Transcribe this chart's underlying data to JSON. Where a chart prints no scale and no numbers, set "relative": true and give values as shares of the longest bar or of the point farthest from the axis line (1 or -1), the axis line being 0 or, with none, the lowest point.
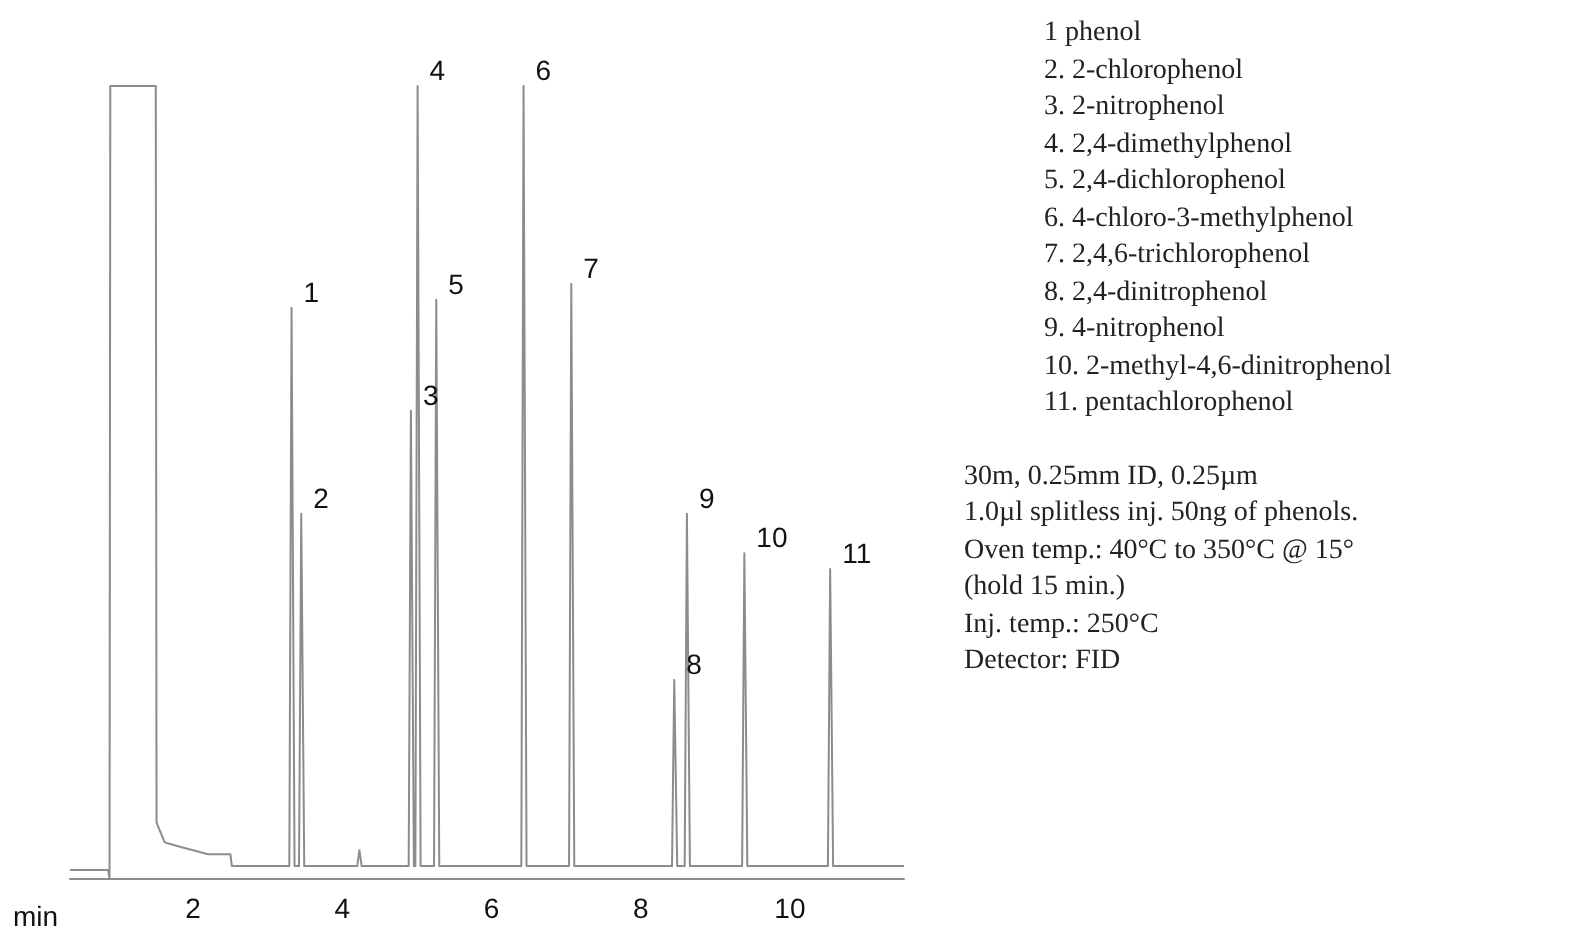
{
  "chart_data": {
    "type": "line",
    "relative": true,
    "xlabel": "min",
    "x": [
      0.35,
      0.86,
      0.88,
      0.89,
      1.5,
      1.51,
      1.62,
      1.8,
      2.2,
      2.5,
      2.52,
      3.29,
      3.32,
      3.36,
      3.42,
      3.45,
      3.49,
      4.2,
      4.23,
      4.26,
      4.89,
      4.92,
      4.96,
      4.98,
      5.01,
      5.05,
      5.23,
      5.26,
      5.3,
      6.4,
      6.43,
      6.47,
      7.04,
      7.07,
      7.11,
      8.42,
      8.45,
      8.49,
      8.59,
      8.62,
      8.66,
      9.36,
      9.39,
      9.43,
      10.51,
      10.54,
      10.58,
      11.53
    ],
    "values": [
      0.01,
      0.01,
      0,
      1,
      1,
      0.07,
      0.045,
      0.04,
      0.03,
      0.03,
      0.015,
      0.015,
      0.72,
      0.015,
      0.015,
      0.46,
      0.015,
      0.015,
      0.035,
      0.015,
      0.015,
      0.59,
      0.015,
      0.015,
      1,
      0.015,
      0.015,
      0.73,
      0.015,
      0.015,
      1,
      0.015,
      0.015,
      0.75,
      0.015,
      0.015,
      0.25,
      0.015,
      0.015,
      0.46,
      0.015,
      0.015,
      0.41,
      0.015,
      0.015,
      0.39,
      0.015,
      0.015
    ],
    "color": "#8c8c8c",
    "marker": "none",
    "line_style": "solid",
    "xlim": [
      0.35,
      11.53
    ],
    "xticks": [
      2,
      4,
      6,
      8,
      10
    ],
    "annotations": [
      {
        "text": "1",
        "x": 3.32,
        "y": 0.72
      },
      {
        "text": "2",
        "x": 3.45,
        "y": 0.46
      },
      {
        "text": "3",
        "x": 4.92,
        "y": 0.59
      },
      {
        "text": "4",
        "x": 5.01,
        "y": 1
      },
      {
        "text": "5",
        "x": 5.26,
        "y": 0.73
      },
      {
        "text": "6",
        "x": 6.43,
        "y": 1
      },
      {
        "text": "7",
        "x": 7.07,
        "y": 0.75
      },
      {
        "text": "8",
        "x": 8.45,
        "y": 0.25
      },
      {
        "text": "9",
        "x": 8.62,
        "y": 0.46
      },
      {
        "text": "10",
        "x": 9.39,
        "y": 0.41
      },
      {
        "text": "11",
        "x": 10.54,
        "y": 0.39
      },
      "1  phenol",
      "2.  2-chlorophenol",
      "3.  2-nitrophenol",
      "4.  2,4-dimethylphenol",
      "5.  2,4-dichlorophenol",
      "6.  4-chloro-3-methylphenol",
      "7.  2,4,6-trichlorophenol",
      "8.  2,4-dinitrophenol",
      "9.  4-nitrophenol",
      "10.  2-methyl-4,6-dinitrophenol",
      "11.  pentachlorophenol",
      "30m, 0.25mm ID, 0.25µm",
      "1.0µl splitless inj. 50ng of phenols.",
      "Oven temp.:  40°C to 350°C @ 15°",
      "(hold 15 min.)",
      "Inj. temp.:  250°C",
      "Detector:  FID"
    ]
  }
}
